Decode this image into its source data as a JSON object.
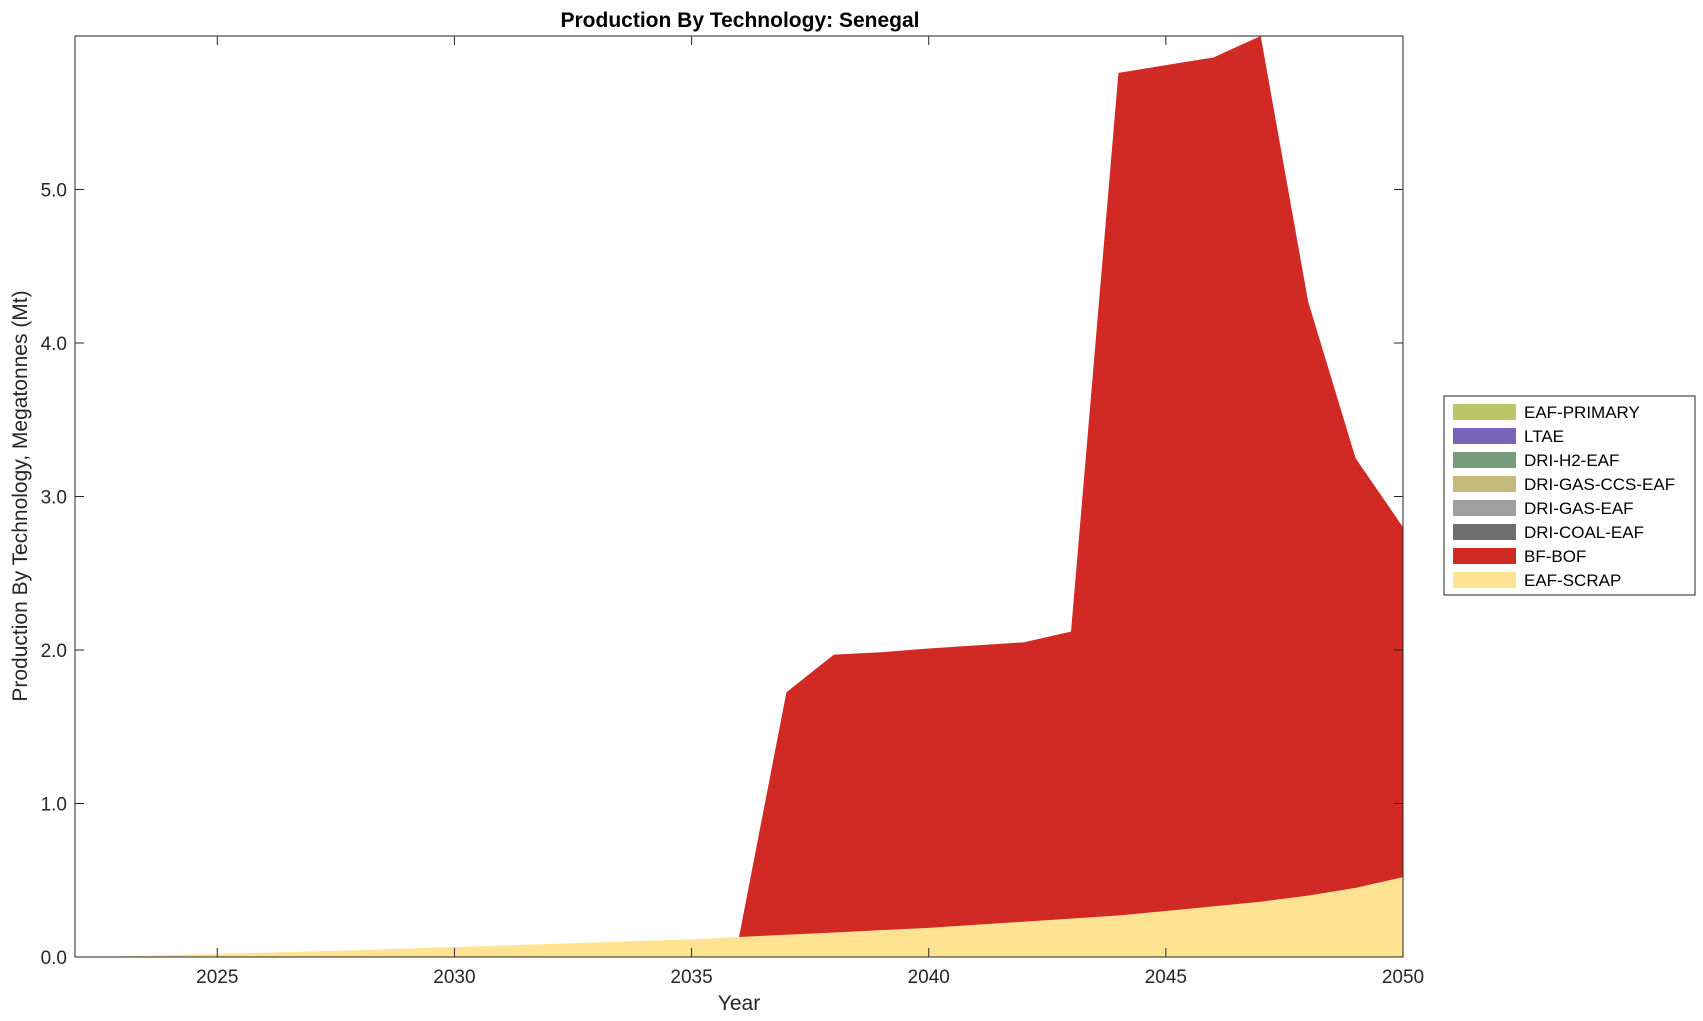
{
  "chart_data": {
    "type": "area",
    "stacked": true,
    "title": "Production By Technology: Senegal",
    "xlabel": "Year",
    "ylabel": "Production By Technology, Megatonnes (Mt)",
    "xlim": [
      2022,
      2050
    ],
    "ylim": [
      0,
      6.0
    ],
    "xticks": [
      2025,
      2030,
      2035,
      2040,
      2045,
      2050
    ],
    "xtick_labels": [
      "2025",
      "2030",
      "2035",
      "2040",
      "2045",
      "2050"
    ],
    "yticks": [
      0,
      1,
      2,
      3,
      4,
      5
    ],
    "ytick_labels": [
      "0.0",
      "1.0",
      "2.0",
      "3.0",
      "4.0",
      "5.0"
    ],
    "grid": false,
    "legend_position": "outside-right",
    "x": [
      2022,
      2023,
      2024,
      2025,
      2026,
      2027,
      2028,
      2029,
      2030,
      2031,
      2032,
      2033,
      2034,
      2035,
      2036,
      2037,
      2038,
      2039,
      2040,
      2041,
      2042,
      2043,
      2044,
      2045,
      2046,
      2047,
      2048,
      2049,
      2050
    ],
    "series": [
      {
        "name": "EAF-SCRAP",
        "color": "#FFE392",
        "values": [
          0.0,
          0.005,
          0.012,
          0.02,
          0.028,
          0.036,
          0.045,
          0.055,
          0.065,
          0.075,
          0.085,
          0.095,
          0.105,
          0.115,
          0.13,
          0.145,
          0.16,
          0.175,
          0.19,
          0.21,
          0.23,
          0.25,
          0.27,
          0.3,
          0.33,
          0.36,
          0.4,
          0.45,
          0.52
        ]
      },
      {
        "name": "BF-BOF",
        "color": "#D12A24",
        "values": [
          0,
          0,
          0,
          0,
          0,
          0,
          0,
          0,
          0,
          0,
          0,
          0,
          0,
          0,
          0.0,
          1.58,
          1.81,
          1.81,
          1.82,
          1.82,
          1.82,
          1.87,
          5.49,
          5.51,
          5.53,
          5.64,
          3.87,
          2.8,
          2.28
        ]
      },
      {
        "name": "DRI-COAL-EAF",
        "color": "#6E6E6E",
        "values": [
          0,
          0,
          0,
          0,
          0,
          0,
          0,
          0,
          0,
          0,
          0,
          0,
          0,
          0,
          0,
          0,
          0,
          0,
          0,
          0,
          0,
          0,
          0,
          0,
          0,
          0,
          0,
          0,
          0
        ]
      },
      {
        "name": "DRI-GAS-EAF",
        "color": "#A0A0A0",
        "values": [
          0,
          0,
          0,
          0,
          0,
          0,
          0,
          0,
          0,
          0,
          0,
          0,
          0,
          0,
          0,
          0,
          0,
          0,
          0,
          0,
          0,
          0,
          0,
          0,
          0,
          0,
          0,
          0,
          0
        ]
      },
      {
        "name": "DRI-GAS-CCS-EAF",
        "color": "#C6B97C",
        "values": [
          0,
          0,
          0,
          0,
          0,
          0,
          0,
          0,
          0,
          0,
          0,
          0,
          0,
          0,
          0,
          0,
          0,
          0,
          0,
          0,
          0,
          0,
          0,
          0,
          0,
          0,
          0,
          0,
          0
        ]
      },
      {
        "name": "DRI-H2-EAF",
        "color": "#789B7C",
        "values": [
          0,
          0,
          0,
          0,
          0,
          0,
          0,
          0,
          0,
          0,
          0,
          0,
          0,
          0,
          0,
          0,
          0,
          0,
          0,
          0,
          0,
          0,
          0,
          0,
          0,
          0,
          0,
          0,
          0
        ]
      },
      {
        "name": "LTAE",
        "color": "#7566B8",
        "values": [
          0,
          0,
          0,
          0,
          0,
          0,
          0,
          0,
          0,
          0,
          0,
          0,
          0,
          0,
          0,
          0,
          0,
          0,
          0,
          0,
          0,
          0,
          0,
          0,
          0,
          0,
          0,
          0,
          0
        ]
      },
      {
        "name": "EAF-PRIMARY",
        "color": "#BDC567",
        "values": [
          0,
          0,
          0,
          0,
          0,
          0,
          0,
          0,
          0,
          0,
          0,
          0,
          0,
          0,
          0,
          0,
          0,
          0,
          0,
          0,
          0,
          0,
          0,
          0,
          0,
          0,
          0,
          0,
          0
        ]
      }
    ],
    "legend_order": [
      "EAF-PRIMARY",
      "LTAE",
      "DRI-H2-EAF",
      "DRI-GAS-CCS-EAF",
      "DRI-GAS-EAF",
      "DRI-COAL-EAF",
      "BF-BOF",
      "EAF-SCRAP"
    ]
  }
}
